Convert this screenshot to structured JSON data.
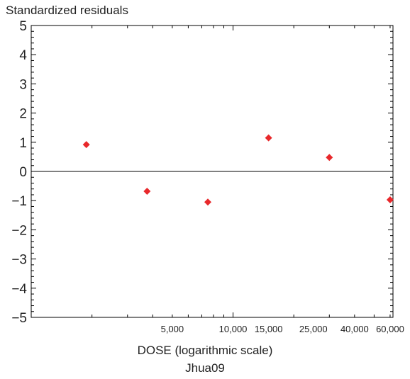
{
  "chart_data": {
    "type": "scatter",
    "ylabel": "Standardized residuals",
    "xlabel": "DOSE (logarithmic scale)",
    "subtitle": "Jhua09",
    "x_scale": "log",
    "xlim": [
      1000,
      62000
    ],
    "ylim": [
      -5,
      5
    ],
    "y_ticks": [
      5,
      4,
      3,
      2,
      1,
      0,
      -1,
      -2,
      -3,
      -4,
      -5
    ],
    "y_tick_labels": [
      "5",
      "4",
      "3",
      "2",
      "1",
      "0",
      "−1",
      "−2",
      "−3",
      "−4",
      "−5"
    ],
    "x_ticks": [
      5000,
      10000,
      15000,
      25000,
      40000,
      60000
    ],
    "x_tick_labels": [
      "5,000",
      "10,000",
      "15,000",
      "25,000",
      "40,000",
      "60,000"
    ],
    "grid": false,
    "reference_line_y": 0,
    "marker_color": "#e8282b",
    "points": [
      {
        "x": 1875,
        "y": 0.92
      },
      {
        "x": 3750,
        "y": -0.68
      },
      {
        "x": 7500,
        "y": -1.05
      },
      {
        "x": 15000,
        "y": 1.15
      },
      {
        "x": 30000,
        "y": 0.48
      },
      {
        "x": 60000,
        "y": -0.97
      }
    ]
  }
}
